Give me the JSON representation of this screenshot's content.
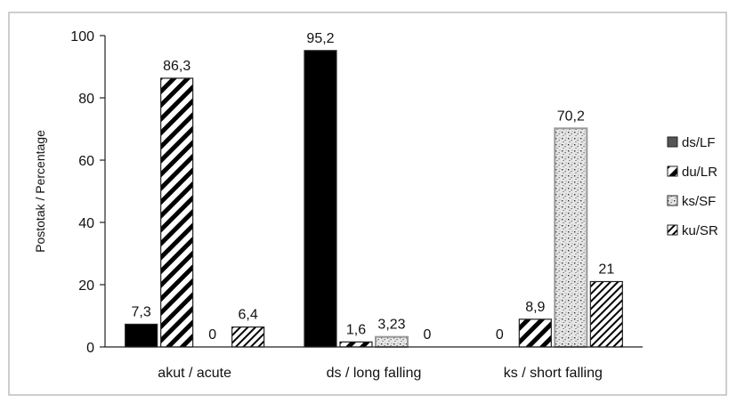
{
  "colors": {
    "frame": "#bdbdbd",
    "axis": "#222222",
    "black": "#000000",
    "white": "#ffffff",
    "lightGray": "#c8c8c8"
  },
  "chart_data": {
    "type": "bar",
    "title": "",
    "xlabel": "",
    "ylabel": "Postotak / Percentage",
    "ylim": [
      0,
      100
    ],
    "yticks": [
      0,
      20,
      40,
      60,
      80,
      100
    ],
    "grid": false,
    "legend_position": "right",
    "categories": [
      "akut / acute",
      "ds / long falling",
      "ks / short falling"
    ],
    "series": [
      {
        "name": "ds/LF",
        "pattern": "solid",
        "values": [
          7.3,
          95.2,
          0
        ],
        "labels": [
          "7,3",
          "95,2",
          "0"
        ]
      },
      {
        "name": "du/LR",
        "pattern": "diag",
        "values": [
          86.3,
          1.6,
          8.9
        ],
        "labels": [
          "86,3",
          "1,6",
          "8,9"
        ]
      },
      {
        "name": "ks/SF",
        "pattern": "dots",
        "values": [
          0,
          3.23,
          70.2
        ],
        "labels": [
          "0",
          "3,23",
          "70,2"
        ]
      },
      {
        "name": "ku/SR",
        "pattern": "fine-diag",
        "values": [
          6.4,
          0,
          21
        ],
        "labels": [
          "6,4",
          "0",
          "21"
        ]
      }
    ]
  }
}
